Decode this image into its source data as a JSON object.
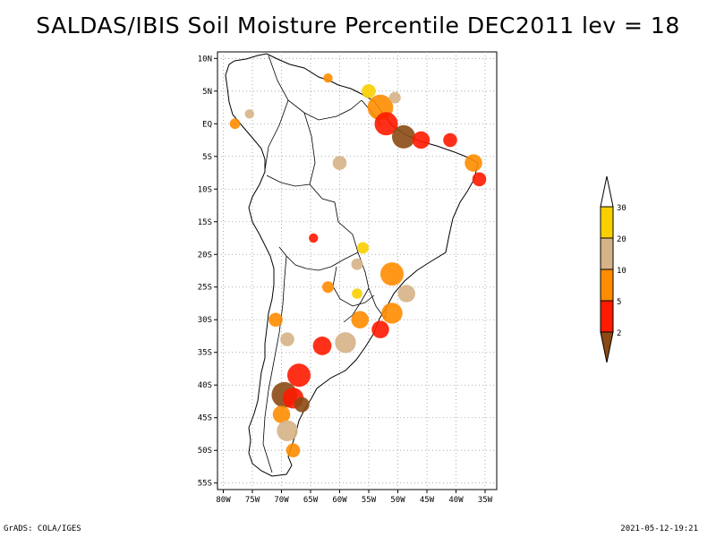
{
  "title": "SALDAS/IBIS Soil Moisture Percentile DEC2011 lev = 18",
  "map": {
    "lat_labels": [
      "10N",
      "5N",
      "EQ",
      "5S",
      "10S",
      "15S",
      "20S",
      "25S",
      "30S",
      "35S",
      "40S",
      "45S",
      "50S",
      "55S"
    ],
    "lat_values": [
      10,
      5,
      0,
      -5,
      -10,
      -15,
      -20,
      -25,
      -30,
      -35,
      -40,
      -45,
      -50,
      -55
    ],
    "lon_labels": [
      "80W",
      "75W",
      "70W",
      "65W",
      "60W",
      "55W",
      "50W",
      "45W",
      "40W",
      "35W"
    ],
    "lon_values": [
      -80,
      -75,
      -70,
      -65,
      -60,
      -55,
      -50,
      -45,
      -40,
      -35
    ],
    "lat_range": [
      -56,
      11
    ],
    "lon_range": [
      -81,
      -33
    ],
    "patches": [
      {
        "lon": -53,
        "lat": 2.5,
        "r": 2.2,
        "class": 10
      },
      {
        "lon": -52,
        "lat": 0,
        "r": 2.0,
        "class": 5
      },
      {
        "lon": -49,
        "lat": -2,
        "r": 2.0,
        "class": 2
      },
      {
        "lon": -46,
        "lat": -2.5,
        "r": 1.5,
        "class": 5
      },
      {
        "lon": -41,
        "lat": -2.5,
        "r": 1.2,
        "class": 5
      },
      {
        "lon": -37,
        "lat": -6,
        "r": 1.5,
        "class": 10
      },
      {
        "lon": -36,
        "lat": -8.5,
        "r": 1.2,
        "class": 5
      },
      {
        "lon": -55,
        "lat": 5,
        "r": 1.2,
        "class": 30
      },
      {
        "lon": -50.5,
        "lat": 4,
        "r": 1.0,
        "class": 20
      },
      {
        "lon": -60,
        "lat": -6,
        "r": 1.2,
        "class": 20
      },
      {
        "lon": -51,
        "lat": -23,
        "r": 2.0,
        "class": 10
      },
      {
        "lon": -48.5,
        "lat": -26,
        "r": 1.5,
        "class": 20
      },
      {
        "lon": -51,
        "lat": -29,
        "r": 1.8,
        "class": 10
      },
      {
        "lon": -53,
        "lat": -31.5,
        "r": 1.5,
        "class": 5
      },
      {
        "lon": -56.5,
        "lat": -30,
        "r": 1.5,
        "class": 10
      },
      {
        "lon": -59,
        "lat": -33.5,
        "r": 1.8,
        "class": 20
      },
      {
        "lon": -63,
        "lat": -34,
        "r": 1.6,
        "class": 5
      },
      {
        "lon": -67,
        "lat": -38.5,
        "r": 2.0,
        "class": 5
      },
      {
        "lon": -69.5,
        "lat": -41.5,
        "r": 2.2,
        "class": 2
      },
      {
        "lon": -68,
        "lat": -42,
        "r": 1.8,
        "class": 5
      },
      {
        "lon": -66.5,
        "lat": -43,
        "r": 1.3,
        "class": 2
      },
      {
        "lon": -70,
        "lat": -44.5,
        "r": 1.5,
        "class": 10
      },
      {
        "lon": -69,
        "lat": -47,
        "r": 1.8,
        "class": 20
      },
      {
        "lon": -68,
        "lat": -50,
        "r": 1.2,
        "class": 10
      },
      {
        "lon": -71,
        "lat": -30,
        "r": 1.2,
        "class": 10
      },
      {
        "lon": -69,
        "lat": -33,
        "r": 1.2,
        "class": 20
      },
      {
        "lon": -62,
        "lat": -25,
        "r": 1.0,
        "class": 10
      },
      {
        "lon": -57,
        "lat": -21.5,
        "r": 1.0,
        "class": 20
      },
      {
        "lon": -56,
        "lat": -19,
        "r": 1.0,
        "class": 30
      },
      {
        "lon": -64.5,
        "lat": -17.5,
        "r": 0.8,
        "class": 5
      },
      {
        "lon": -57,
        "lat": -26,
        "r": 0.9,
        "class": 30
      },
      {
        "lon": -78,
        "lat": 0,
        "r": 0.9,
        "class": 10
      },
      {
        "lon": -75.5,
        "lat": 1.5,
        "r": 0.8,
        "class": 20
      },
      {
        "lon": -62,
        "lat": 7,
        "r": 0.8,
        "class": 10
      }
    ]
  },
  "legend": {
    "labels": [
      "30",
      "20",
      "10",
      "5",
      "2"
    ],
    "colors": [
      "#ffffff",
      "#f9cf00",
      "#d6b287",
      "#ff8c00",
      "#ff1a00",
      "#8c4a14"
    ]
  },
  "footer": {
    "left": "GrADS: COLA/IGES",
    "right": "2021-05-12-19:21"
  }
}
